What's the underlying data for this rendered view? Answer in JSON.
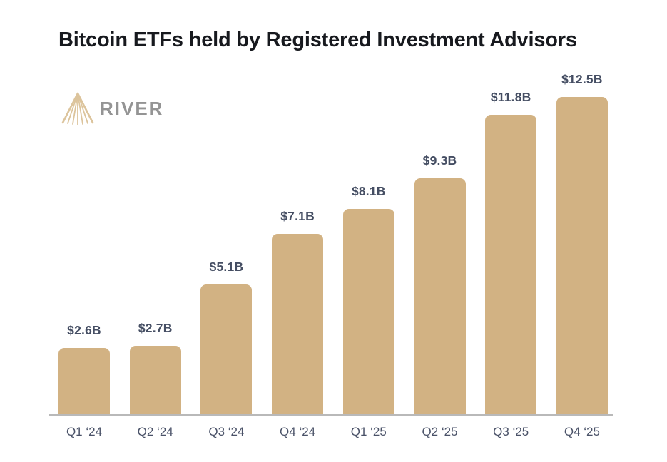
{
  "header": {
    "title": "Bitcoin ETFs held by Registered Investment Advisors"
  },
  "logo": {
    "brand": "RIVER",
    "icon": "river-mountain-icon"
  },
  "colors": {
    "bar": "#d2b283",
    "value_label": "#454e63",
    "axis_label": "#4a5268",
    "axis_line": "#b9b9b9",
    "title": "#17191e",
    "logo_text": "#949494",
    "logo_icon": "#dcc49c",
    "background": "#ffffff"
  },
  "chart_data": {
    "type": "bar",
    "title": "Bitcoin ETFs held by Registered Investment Advisors",
    "categories": [
      "Q1 ‘24",
      "Q2 ‘24",
      "Q3 ‘24",
      "Q4 ‘24",
      "Q1 ‘25",
      "Q2 ‘25",
      "Q3 ‘25",
      "Q4 ‘25"
    ],
    "values": [
      2.6,
      2.7,
      5.1,
      7.1,
      8.1,
      9.3,
      11.8,
      12.5
    ],
    "labels": [
      "$2.6B",
      "$2.7B",
      "$5.1B",
      "$7.1B",
      "$8.1B",
      "$9.3B",
      "$11.8B",
      "$12.5B"
    ],
    "xlabel": "",
    "ylabel": "",
    "ylim": [
      0,
      12.5
    ],
    "grid": false,
    "legend": false,
    "value_labels_position": "above-bars",
    "bar_color": "#d2b283"
  }
}
